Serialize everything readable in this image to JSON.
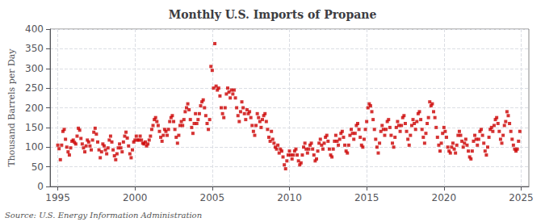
{
  "chart_data": {
    "type": "scatter",
    "title": "Monthly U.S. Imports of Propane",
    "ylabel": "Thousand Barrels per Day",
    "source": "Source: U.S. Energy Information Administration",
    "xlim": [
      1994.5,
      2025.5
    ],
    "ylim": [
      0,
      400
    ],
    "xticks": [
      1995,
      2000,
      2005,
      2010,
      2015,
      2020,
      2025
    ],
    "yticks": [
      0,
      50,
      100,
      150,
      200,
      250,
      300,
      350,
      400
    ],
    "grid": true,
    "color": "#CC0000",
    "marker": "square",
    "x": [
      1995.0,
      1995.083,
      1995.167,
      1995.25,
      1995.333,
      1995.417,
      1995.5,
      1995.583,
      1995.667,
      1995.75,
      1995.833,
      1995.917,
      1996.0,
      1996.083,
      1996.167,
      1996.25,
      1996.333,
      1996.417,
      1996.5,
      1996.583,
      1996.667,
      1996.75,
      1996.833,
      1996.917,
      1997.0,
      1997.083,
      1997.167,
      1997.25,
      1997.333,
      1997.417,
      1997.5,
      1997.583,
      1997.667,
      1997.75,
      1997.833,
      1997.917,
      1998.0,
      1998.083,
      1998.167,
      1998.25,
      1998.333,
      1998.417,
      1998.5,
      1998.583,
      1998.667,
      1998.75,
      1998.833,
      1998.917,
      1999.0,
      1999.083,
      1999.167,
      1999.25,
      1999.333,
      1999.417,
      1999.5,
      1999.583,
      1999.667,
      1999.75,
      1999.833,
      1999.917,
      2000.0,
      2000.083,
      2000.167,
      2000.25,
      2000.333,
      2000.417,
      2000.5,
      2000.583,
      2000.667,
      2000.75,
      2000.833,
      2000.917,
      2001.0,
      2001.083,
      2001.167,
      2001.25,
      2001.333,
      2001.417,
      2001.5,
      2001.583,
      2001.667,
      2001.75,
      2001.833,
      2001.917,
      2002.0,
      2002.083,
      2002.167,
      2002.25,
      2002.333,
      2002.417,
      2002.5,
      2002.583,
      2002.667,
      2002.75,
      2002.833,
      2002.917,
      2003.0,
      2003.083,
      2003.167,
      2003.25,
      2003.333,
      2003.417,
      2003.5,
      2003.583,
      2003.667,
      2003.75,
      2003.833,
      2003.917,
      2004.0,
      2004.083,
      2004.167,
      2004.25,
      2004.333,
      2004.417,
      2004.5,
      2004.583,
      2004.667,
      2004.75,
      2004.833,
      2004.917,
      2005.0,
      2005.083,
      2005.167,
      2005.25,
      2005.333,
      2005.417,
      2005.5,
      2005.583,
      2005.667,
      2005.75,
      2005.833,
      2005.917,
      2006.0,
      2006.083,
      2006.167,
      2006.25,
      2006.333,
      2006.417,
      2006.5,
      2006.583,
      2006.667,
      2006.75,
      2006.833,
      2006.917,
      2007.0,
      2007.083,
      2007.167,
      2007.25,
      2007.333,
      2007.417,
      2007.5,
      2007.583,
      2007.667,
      2007.75,
      2007.833,
      2007.917,
      2008.0,
      2008.083,
      2008.167,
      2008.25,
      2008.333,
      2008.417,
      2008.5,
      2008.583,
      2008.667,
      2008.75,
      2008.833,
      2008.917,
      2009.0,
      2009.083,
      2009.167,
      2009.25,
      2009.333,
      2009.417,
      2009.5,
      2009.583,
      2009.667,
      2009.75,
      2009.833,
      2009.917,
      2010.0,
      2010.083,
      2010.167,
      2010.25,
      2010.333,
      2010.417,
      2010.5,
      2010.583,
      2010.667,
      2010.75,
      2010.833,
      2010.917,
      2011.0,
      2011.083,
      2011.167,
      2011.25,
      2011.333,
      2011.417,
      2011.5,
      2011.583,
      2011.667,
      2011.75,
      2011.833,
      2011.917,
      2012.0,
      2012.083,
      2012.167,
      2012.25,
      2012.333,
      2012.417,
      2012.5,
      2012.583,
      2012.667,
      2012.75,
      2012.833,
      2012.917,
      2013.0,
      2013.083,
      2013.167,
      2013.25,
      2013.333,
      2013.417,
      2013.5,
      2013.583,
      2013.667,
      2013.75,
      2013.833,
      2013.917,
      2014.0,
      2014.083,
      2014.167,
      2014.25,
      2014.333,
      2014.417,
      2014.5,
      2014.583,
      2014.667,
      2014.75,
      2014.833,
      2014.917,
      2015.0,
      2015.083,
      2015.167,
      2015.25,
      2015.333,
      2015.417,
      2015.5,
      2015.583,
      2015.667,
      2015.75,
      2015.833,
      2015.917,
      2016.0,
      2016.083,
      2016.167,
      2016.25,
      2016.333,
      2016.417,
      2016.5,
      2016.583,
      2016.667,
      2016.75,
      2016.833,
      2016.917,
      2017.0,
      2017.083,
      2017.167,
      2017.25,
      2017.333,
      2017.417,
      2017.5,
      2017.583,
      2017.667,
      2017.75,
      2017.833,
      2017.917,
      2018.0,
      2018.083,
      2018.167,
      2018.25,
      2018.333,
      2018.417,
      2018.5,
      2018.583,
      2018.667,
      2018.75,
      2018.833,
      2018.917,
      2019.0,
      2019.083,
      2019.167,
      2019.25,
      2019.333,
      2019.417,
      2019.5,
      2019.583,
      2019.667,
      2019.75,
      2019.833,
      2019.917,
      2020.0,
      2020.083,
      2020.167,
      2020.25,
      2020.333,
      2020.417,
      2020.5,
      2020.583,
      2020.667,
      2020.75,
      2020.833,
      2020.917,
      2021.0,
      2021.083,
      2021.167,
      2021.25,
      2021.333,
      2021.417,
      2021.5,
      2021.583,
      2021.667,
      2021.75,
      2021.833,
      2021.917,
      2022.0,
      2022.083,
      2022.167,
      2022.25,
      2022.333,
      2022.417,
      2022.5,
      2022.583,
      2022.667,
      2022.75,
      2022.833,
      2022.917,
      2023.0,
      2023.083,
      2023.167,
      2023.25,
      2023.333,
      2023.417,
      2023.5,
      2023.583,
      2023.667,
      2023.75,
      2023.833,
      2023.917,
      2024.0,
      2024.083,
      2024.167,
      2024.25,
      2024.333,
      2024.417,
      2024.5,
      2024.583,
      2024.667,
      2024.75,
      2024.833,
      2024.917
    ],
    "values": [
      105,
      96,
      68,
      105,
      140,
      145,
      120,
      100,
      88,
      80,
      98,
      115,
      118,
      112,
      108,
      128,
      148,
      143,
      122,
      108,
      98,
      88,
      103,
      118,
      113,
      103,
      93,
      118,
      138,
      148,
      133,
      113,
      93,
      73,
      88,
      108,
      103,
      93,
      83,
      98,
      118,
      128,
      113,
      93,
      78,
      68,
      83,
      98,
      108,
      98,
      88,
      113,
      128,
      138,
      123,
      103,
      83,
      73,
      93,
      113,
      118,
      128,
      118,
      118,
      128,
      118,
      110,
      108,
      113,
      103,
      108,
      118,
      128,
      145,
      155,
      170,
      175,
      165,
      155,
      140,
      125,
      115,
      130,
      145,
      140,
      130,
      145,
      165,
      175,
      180,
      165,
      145,
      125,
      110,
      130,
      155,
      165,
      155,
      170,
      190,
      200,
      210,
      195,
      170,
      150,
      135,
      160,
      185,
      160,
      170,
      185,
      205,
      215,
      220,
      200,
      180,
      160,
      145,
      170,
      305,
      295,
      250,
      363,
      255,
      245,
      250,
      230,
      200,
      185,
      175,
      200,
      235,
      250,
      240,
      225,
      245,
      235,
      245,
      225,
      200,
      180,
      165,
      190,
      215,
      200,
      185,
      170,
      195,
      185,
      190,
      175,
      155,
      140,
      130,
      155,
      185,
      175,
      165,
      150,
      170,
      180,
      185,
      165,
      145,
      125,
      115,
      140,
      120,
      110,
      100,
      95,
      105,
      85,
      95,
      90,
      75,
      55,
      45,
      65,
      80,
      90,
      80,
      70,
      80,
      90,
      95,
      80,
      65,
      55,
      60,
      80,
      100,
      110,
      95,
      85,
      95,
      105,
      110,
      95,
      80,
      65,
      70,
      90,
      110,
      120,
      105,
      95,
      110,
      125,
      130,
      115,
      95,
      80,
      75,
      95,
      115,
      130,
      115,
      105,
      120,
      135,
      140,
      125,
      105,
      90,
      85,
      105,
      130,
      145,
      135,
      120,
      135,
      155,
      160,
      145,
      125,
      105,
      100,
      120,
      145,
      165,
      200,
      210,
      205,
      190,
      170,
      145,
      120,
      100,
      85,
      110,
      140,
      155,
      145,
      130,
      145,
      165,
      170,
      150,
      130,
      110,
      100,
      125,
      150,
      165,
      155,
      140,
      155,
      175,
      180,
      160,
      140,
      120,
      105,
      130,
      155,
      170,
      160,
      145,
      165,
      185,
      190,
      170,
      145,
      125,
      110,
      135,
      160,
      175,
      215,
      205,
      210,
      190,
      175,
      150,
      125,
      105,
      90,
      110,
      135,
      150,
      140,
      125,
      100,
      90,
      85,
      100,
      110,
      95,
      85,
      105,
      130,
      140,
      130,
      115,
      100,
      110,
      120,
      105,
      90,
      75,
      70,
      90,
      115,
      130,
      120,
      105,
      120,
      140,
      145,
      130,
      110,
      90,
      80,
      100,
      125,
      145,
      150,
      140,
      155,
      170,
      175,
      160,
      140,
      120,
      110,
      130,
      155,
      165,
      190,
      180,
      160,
      140,
      120,
      105,
      95,
      90,
      95,
      115,
      140
    ]
  }
}
